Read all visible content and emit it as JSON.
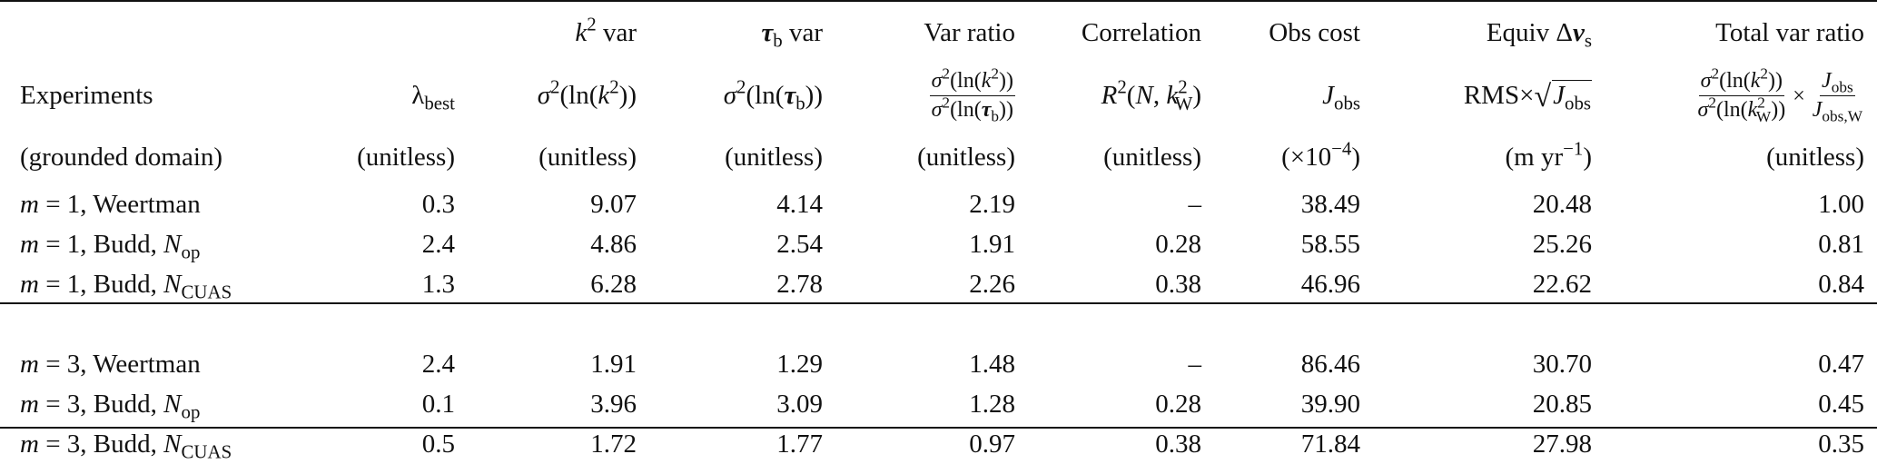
{
  "header": {
    "row1": {
      "k2_var": "var",
      "tau_var": "var",
      "var_ratio": "Var ratio",
      "correlation": "Correlation",
      "obs_cost": "Obs cost",
      "equiv": "Equiv",
      "total_var_ratio": "Total var ratio"
    },
    "row2": {
      "experiments": "Experiments",
      "rms": "RMS"
    },
    "row3": {
      "domain": "(grounded domain)",
      "unitless": "(unitless)",
      "obs_cost_units": "(×10",
      "obs_cost_exp": "−4",
      "obs_cost_close": ")",
      "equiv_units": "(m yr",
      "equiv_exp": "−1",
      "equiv_close": ")"
    }
  },
  "rows": [
    {
      "exp": "= 1, Weertman",
      "m": "1",
      "lambda": "0.3",
      "k2": "9.07",
      "tau": "4.14",
      "ratio": "2.19",
      "corr": "–",
      "obs": "38.49",
      "equiv": "20.48",
      "total": "1.00"
    },
    {
      "exp": "= 1, Budd,",
      "m": "1",
      "nsub": "op",
      "lambda": "2.4",
      "k2": "4.86",
      "tau": "2.54",
      "ratio": "1.91",
      "corr": "0.28",
      "obs": "58.55",
      "equiv": "25.26",
      "total": "0.81"
    },
    {
      "exp": "= 1, Budd,",
      "m": "1",
      "nsub": "CUAS",
      "lambda": "1.3",
      "k2": "6.28",
      "tau": "2.78",
      "ratio": "2.26",
      "corr": "0.38",
      "obs": "46.96",
      "equiv": "22.62",
      "total": "0.84"
    },
    {
      "exp": "= 3, Weertman",
      "m": "3",
      "lambda": "2.4",
      "k2": "1.91",
      "tau": "1.29",
      "ratio": "1.48",
      "corr": "–",
      "obs": "86.46",
      "equiv": "30.70",
      "total": "0.47"
    },
    {
      "exp": "= 3, Budd,",
      "m": "3",
      "nsub": "op",
      "lambda": "0.1",
      "k2": "3.96",
      "tau": "3.09",
      "ratio": "1.28",
      "corr": "0.28",
      "obs": "39.90",
      "equiv": "20.85",
      "total": "0.45"
    },
    {
      "exp": "= 3, Budd,",
      "m": "3",
      "nsub": "CUAS",
      "lambda": "0.5",
      "k2": "1.72",
      "tau": "1.77",
      "ratio": "0.97",
      "corr": "0.38",
      "obs": "71.84",
      "equiv": "27.98",
      "total": "0.35"
    }
  ]
}
